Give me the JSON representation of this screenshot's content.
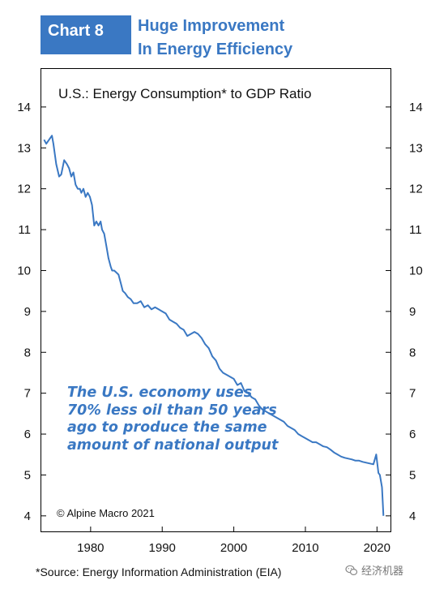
{
  "header": {
    "tag": "Chart 8",
    "headline_line1": "Huge Improvement",
    "headline_line2": "In Energy Efficiency",
    "accent_color": "#3a78c3"
  },
  "footer": {
    "source": "*Source: Energy Information Administration (EIA)",
    "watermark": "经济机器",
    "watermark_icon": "wechat-icon"
  },
  "chart_data": {
    "type": "line",
    "title": "U.S.: Energy Consumption* to GDP Ratio",
    "xlabel": "",
    "ylabel": "",
    "xlim": [
      1973,
      2022
    ],
    "ylim": [
      3.6,
      14.95
    ],
    "x_ticks": [
      1980,
      1990,
      2000,
      2010,
      2020
    ],
    "y_ticks": [
      4,
      5,
      6,
      7,
      8,
      9,
      10,
      11,
      12,
      13,
      14
    ],
    "y_axis_both_sides": true,
    "grid": false,
    "annotation": [
      "The U.S. economy uses",
      "70% less oil than 50 years",
      "ago to produce the same",
      "amount of national output"
    ],
    "copyright": "© Alpine Macro 2021",
    "series": [
      {
        "color": "#3a78c3",
        "x": [
          1973.5,
          1973.8,
          1974.2,
          1974.6,
          1974.8,
          1975.2,
          1975.6,
          1975.9,
          1976.3,
          1976.7,
          1977.0,
          1977.3,
          1977.6,
          1977.9,
          1978.2,
          1978.5,
          1978.7,
          1979.0,
          1979.3,
          1979.6,
          1979.9,
          1980.2,
          1980.5,
          1980.8,
          1981.1,
          1981.4,
          1981.6,
          1981.9,
          1982.2,
          1982.5,
          1982.8,
          1983.0,
          1983.3,
          1983.6,
          1983.9,
          1984.2,
          1984.5,
          1984.8,
          1985.2,
          1985.6,
          1986.0,
          1986.5,
          1987.0,
          1987.5,
          1988.0,
          1988.5,
          1989.0,
          1989.5,
          1990.0,
          1990.5,
          1991.0,
          1991.5,
          1992.0,
          1992.5,
          1993.0,
          1993.5,
          1994.0,
          1994.5,
          1995.0,
          1995.5,
          1996.0,
          1996.5,
          1997.0,
          1997.5,
          1998.0,
          1998.5,
          1999.0,
          1999.5,
          2000.0,
          2000.5,
          2001.0,
          2001.5,
          2002.0,
          2002.5,
          2003.0,
          2003.5,
          2004.0,
          2004.5,
          2005.0,
          2005.5,
          2006.0,
          2006.5,
          2007.0,
          2007.5,
          2008.0,
          2008.5,
          2009.0,
          2009.5,
          2010.0,
          2010.5,
          2011.0,
          2011.5,
          2012.0,
          2012.5,
          2013.0,
          2013.5,
          2014.0,
          2014.5,
          2015.0,
          2015.5,
          2016.0,
          2016.5,
          2017.0,
          2017.5,
          2018.0,
          2018.5,
          2019.0,
          2019.5,
          2019.9,
          2020.2,
          2020.4,
          2020.7,
          2020.9
        ],
        "y": [
          13.2,
          13.1,
          13.2,
          13.3,
          13.1,
          12.6,
          12.3,
          12.35,
          12.7,
          12.6,
          12.5,
          12.3,
          12.4,
          12.1,
          12.0,
          12.0,
          11.9,
          12.0,
          11.8,
          11.9,
          11.8,
          11.6,
          11.1,
          11.2,
          11.1,
          11.2,
          11.0,
          10.9,
          10.6,
          10.3,
          10.1,
          10.0,
          10.0,
          9.95,
          9.9,
          9.7,
          9.5,
          9.45,
          9.35,
          9.3,
          9.2,
          9.2,
          9.25,
          9.1,
          9.15,
          9.05,
          9.1,
          9.05,
          9.0,
          8.95,
          8.8,
          8.75,
          8.7,
          8.6,
          8.55,
          8.4,
          8.45,
          8.5,
          8.45,
          8.35,
          8.2,
          8.1,
          7.9,
          7.8,
          7.6,
          7.5,
          7.45,
          7.4,
          7.35,
          7.2,
          7.25,
          7.05,
          7.0,
          6.9,
          6.85,
          6.7,
          6.6,
          6.55,
          6.5,
          6.45,
          6.4,
          6.35,
          6.3,
          6.2,
          6.15,
          6.1,
          6.0,
          5.95,
          5.9,
          5.85,
          5.8,
          5.8,
          5.75,
          5.7,
          5.68,
          5.62,
          5.55,
          5.5,
          5.45,
          5.42,
          5.4,
          5.38,
          5.35,
          5.35,
          5.32,
          5.3,
          5.28,
          5.26,
          5.5,
          5.05,
          5.0,
          4.7,
          4.0
        ]
      }
    ]
  }
}
